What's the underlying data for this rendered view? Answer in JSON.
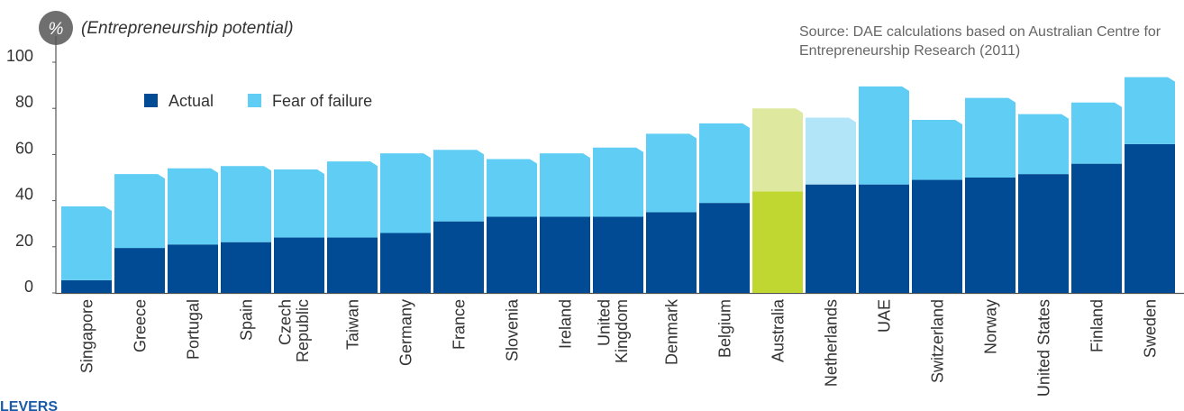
{
  "chart_data": {
    "type": "stacked-bar",
    "y_badge": "%",
    "subtitle": "(Entrepreneurship potential)",
    "source": [
      "Source: DAE calculations based on Australian Centre for",
      "Entrepreneurship Research (2011)"
    ],
    "footer": "LEVERS",
    "categories": [
      "Singapore",
      "Greece",
      "Portugal",
      "Spain",
      [
        "Czech",
        "Republic"
      ],
      "Taiwan",
      "Germany",
      "France",
      "Slovenia",
      "Ireland",
      [
        "United",
        "Kingdom"
      ],
      "Denmark",
      "Belgium",
      "Australia",
      "Netherlands",
      "UAE",
      "Switzerland",
      "Norway",
      "United States",
      "Finland",
      "Sweden"
    ],
    "series": [
      {
        "name": "Actual",
        "color": "#004b93",
        "colors": [
          "#004b93",
          "#004b93",
          "#004b93",
          "#004b93",
          "#004b93",
          "#004b93",
          "#004b93",
          "#004b93",
          "#004b93",
          "#004b93",
          "#004b93",
          "#004b93",
          "#004b93",
          "#bfd730",
          "#004b93",
          "#004b93",
          "#004b93",
          "#004b93",
          "#004b93",
          "#004b93",
          "#004b93"
        ],
        "values": [
          5.5,
          19.5,
          21,
          22,
          24,
          24,
          26,
          31,
          33,
          33,
          33,
          35,
          39,
          44,
          47,
          47,
          49,
          50,
          51.5,
          56,
          64.5
        ]
      },
      {
        "name": "Fear of failure",
        "color": "#5fcdf4",
        "colors": [
          "#5fcdf4",
          "#5fcdf4",
          "#5fcdf4",
          "#5fcdf4",
          "#5fcdf4",
          "#5fcdf4",
          "#5fcdf4",
          "#5fcdf4",
          "#5fcdf4",
          "#5fcdf4",
          "#5fcdf4",
          "#5fcdf4",
          "#5fcdf4",
          "#dfe89f",
          "#b3e5f9",
          "#5fcdf4",
          "#5fcdf4",
          "#5fcdf4",
          "#5fcdf4",
          "#5fcdf4",
          "#5fcdf4"
        ],
        "values": [
          32,
          32,
          33,
          33,
          29.5,
          33,
          34.5,
          31,
          25,
          27.5,
          30,
          34,
          34.5,
          36,
          29,
          42.5,
          26,
          34.5,
          26,
          26.5,
          29
        ]
      }
    ],
    "ylim": [
      0,
      100
    ],
    "yticks": [
      0,
      20,
      40,
      60,
      80,
      100
    ],
    "grid": false,
    "legend": "top-left"
  }
}
